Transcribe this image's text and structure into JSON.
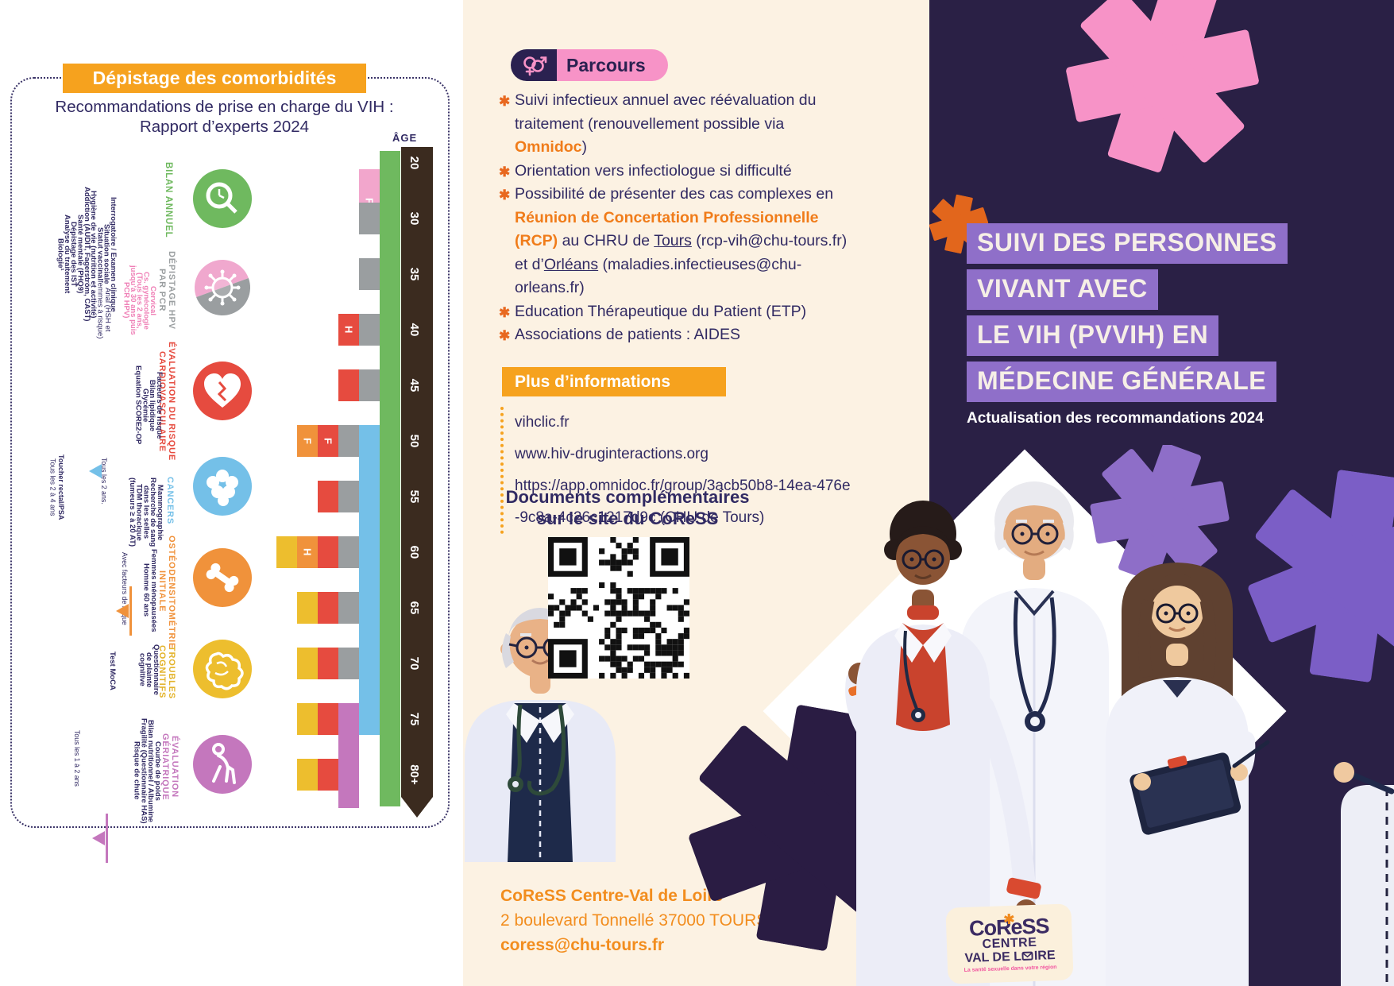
{
  "document_title": "Suivi des personnes vivant avec le VIH (PVVIH) en médecine générale",
  "colors": {
    "accent_orange": "#F6A21E",
    "deep_orange": "#E8681F",
    "link_orange": "#F07C1A",
    "navy": "#312A63",
    "cream": "#FCF2E3",
    "panel_dark": "#2A2045",
    "title_highlight": "#8F6FC9",
    "pink": "#F793C7",
    "logo_purple": "#3B2B63",
    "logo_pink": "#F2559F",
    "contact_orange": "#F28D1E",
    "blocks": {
      "green": "#6FB95F",
      "gray": "#9A9EA0",
      "pink": "#F2A6CC",
      "red": "#E64B3F",
      "orange": "#F0923B",
      "yellow": "#EDBE2E",
      "blue": "#74C0E8",
      "purple": "#C477BD",
      "brown": "#3B2B1F"
    }
  },
  "left_panel": {
    "box_title": "Dépistage des comorbidités",
    "subtitle": [
      "Recommandations de prise en charge du VIH :",
      "Rapport d’experts 2024"
    ],
    "age_axis_label": "ÂGE",
    "ages": [
      "20",
      "30",
      "35",
      "40",
      "45",
      "50",
      "55",
      "60",
      "65",
      "70",
      "75",
      "80+"
    ],
    "categories": [
      {
        "id": "bilan",
        "header": [
          "BILAN ANNUEL"
        ],
        "color": "#6FB95F",
        "icon": "magnifier-icon",
        "lines": [
          "Interrogatoire / Examen clinique",
          "Situation sociale",
          "Statut vaccinal",
          "Hygiène de vie (nutrition et activité)",
          "Addiction (AUDIT, Fagerström, CAST)",
          "Santé mentale (PHQ9)",
          "Dépistage des IST",
          "Analyse du traitement",
          "Biologie¹"
        ]
      },
      {
        "id": "hpv",
        "header": [
          "DÉPISTAGE HPV",
          "PAR PCR"
        ],
        "color": "#9A9EA0",
        "icon": "virus-icon",
        "pink_color": "#EF7FB6",
        "pink_lines": [
          "Cervical",
          "Cs. gynécologie",
          "(Tous les 2 ans,",
          "jusqu’à 30 ans puis",
          "PCR HPV)"
        ],
        "lines2": [
          "Anal (HSH et",
          "femmes à risque)"
        ]
      },
      {
        "id": "cardio",
        "header": [
          "ÉVALUATION DU RISQUE",
          "CARDIOVASCULAIRE"
        ],
        "color": "#E64B3F",
        "icon": "heart-icon",
        "lines": [
          "Facteurs de risque",
          "Bilan lipidique",
          "Glycémie",
          "Equation SCORE2-OP"
        ]
      },
      {
        "id": "cancers",
        "header": [
          "CANCERS"
        ],
        "color": "#74C0E8",
        "icon": "cells-icon",
        "lines": [
          "Mammographie",
          "Recherche de sang",
          "dans les selles",
          "TDM thoracique",
          "(fumeurs ≥ à 20 AT)"
        ],
        "annotations": [
          {
            "lines": [
              "Tous les 2 ans."
            ],
            "marker": "#74C0E8"
          },
          {
            "lines": [
              "Toucher rectal/PSA",
              "Tous les 2 à 4 ans"
            ],
            "bold_first": true
          }
        ]
      },
      {
        "id": "osteo",
        "header": [
          "OSTÉODENSITOMÉTRIE",
          "INITIALE"
        ],
        "color": "#F0923B",
        "icon": "bone-icon",
        "lines": [
          "Femmes ménopausées",
          "Homme 60 ans"
        ],
        "annotations": [
          {
            "lines": [
              "Avec facteurs de risque"
            ],
            "marker": "#F0923B"
          }
        ]
      },
      {
        "id": "cognitif",
        "header": [
          "TROUBLES",
          "COGNITIFS"
        ],
        "color": "#E3B32A",
        "icon": "brain-icon",
        "lines": [
          "Questionnaire",
          "de plainte",
          "cognitive"
        ],
        "lines2": [
          "Test MoCA"
        ]
      },
      {
        "id": "geriatrie",
        "header": [
          "ÉVALUATION",
          "GÉRIATRIQUE"
        ],
        "color": "#C477BD",
        "icon": "person-cane-icon",
        "lines": [
          "Courbe de poids",
          "Bilan nutritionnel / Albumine",
          "Fragilité (Questionnaire HAS)",
          "Risque de chute"
        ],
        "annotations": [
          {
            "lines": [
              "Tous les 1 à 2 ans"
            ],
            "marker": "#C477BD"
          }
        ]
      }
    ],
    "chart": {
      "type": "timeline-bar",
      "age_axis": [
        "20",
        "30",
        "35",
        "40",
        "45",
        "50",
        "55",
        "60",
        "65",
        "70",
        "75",
        "80+"
      ],
      "bars": [
        {
          "category": "BILAN ANNUEL",
          "c": "green",
          "from": "20",
          "to": "80+"
        },
        {
          "category": "CANCERS",
          "c": "blue",
          "from": "50",
          "to": "75"
        },
        {
          "category": "ÉVALUATION GÉRIATRIQUE",
          "c": "purple",
          "from": "75",
          "to": "80+"
        }
      ],
      "rows": [
        {
          "age": "20-30",
          "blocks": [
            {
              "c": "pink",
              "l": "F",
              "col": 1,
              "span2": true
            }
          ]
        },
        {
          "age": "30",
          "blocks": [
            {
              "c": "gray",
              "col": 1
            }
          ]
        },
        {
          "age": "35",
          "blocks": [
            {
              "c": "gray",
              "col": 1
            }
          ]
        },
        {
          "age": "40",
          "blocks": [
            {
              "c": "red",
              "l": "H",
              "col": 2
            },
            {
              "c": "gray",
              "col": 1
            }
          ]
        },
        {
          "age": "45",
          "blocks": [
            {
              "c": "red",
              "col": 2
            },
            {
              "c": "gray",
              "col": 1
            }
          ]
        },
        {
          "age": "50",
          "blocks": [
            {
              "c": "orange",
              "l": "F",
              "col": 4
            },
            {
              "c": "red",
              "l": "F",
              "col": 3
            },
            {
              "c": "gray",
              "col": 2
            }
          ]
        },
        {
          "age": "55",
          "blocks": [
            {
              "c": "red",
              "col": 3
            },
            {
              "c": "gray",
              "col": 2
            }
          ]
        },
        {
          "age": "60",
          "blocks": [
            {
              "c": "yellow",
              "col": 5
            },
            {
              "c": "orange",
              "l": "H",
              "col": 4
            },
            {
              "c": "red",
              "col": 3
            },
            {
              "c": "gray",
              "col": 2
            }
          ]
        },
        {
          "age": "65",
          "blocks": [
            {
              "c": "yellow",
              "col": 4
            },
            {
              "c": "red",
              "col": 3
            },
            {
              "c": "gray",
              "col": 2
            }
          ]
        },
        {
          "age": "70",
          "blocks": [
            {
              "c": "yellow",
              "col": 4
            },
            {
              "c": "red",
              "col": 3
            },
            {
              "c": "gray",
              "col": 2
            }
          ]
        },
        {
          "age": "75",
          "blocks": [
            {
              "c": "yellow",
              "col": 4
            },
            {
              "c": "red",
              "col": 3
            }
          ]
        },
        {
          "age": "80+",
          "blocks": [
            {
              "c": "yellow",
              "col": 4
            },
            {
              "c": "red",
              "col": 3
            }
          ]
        }
      ]
    }
  },
  "middle_panel": {
    "parcours": {
      "label": "Parcours",
      "icon": "gender-symbols-icon",
      "bullets": [
        [
          {
            "t": "Suivi infectieux annuel avec réévaluation du traitement (renouvellement possible via "
          },
          {
            "t": "Omnidoc",
            "s": "orange"
          },
          {
            "t": ")"
          }
        ],
        [
          {
            "t": "Orientation vers infectiologue si difficulté"
          }
        ],
        [
          {
            "t": "Possibilité de présenter des cas complexes en "
          },
          {
            "t": "Réunion de Concertation Professionnelle (RCP)",
            "s": "orange"
          },
          {
            "t": " au CHRU de "
          },
          {
            "t": "Tours",
            "s": "underline"
          },
          {
            "t": " (rcp-vih@chu-tours.fr) et d’"
          },
          {
            "t": "Orléans",
            "s": "underline"
          },
          {
            "t": " (maladies.infectieuses@chu-orleans.fr)"
          }
        ],
        [
          {
            "t": "Education Thérapeutique du Patient (ETP)"
          }
        ],
        [
          {
            "t": "Associations de patients : AIDES"
          }
        ]
      ]
    },
    "plus_informations": {
      "title": "Plus d’informations",
      "links": [
        "vihclic.fr",
        "www.hiv-druginteractions.org",
        "https://app.omnidoc.fr/group/3acb50b8-14ea-476e-9c8a-4c26c1217d9c (CHU de Tours)"
      ]
    },
    "documents": {
      "line1": "Documents complémentaires",
      "line2": "sur le site du CoReSS",
      "qr": "qr-code"
    },
    "contact": {
      "name": "CoReSS Centre-Val de Loire",
      "address": "2 boulevard Tonnellé 37000 TOURS",
      "email": "coress@chu-tours.fr"
    }
  },
  "right_panel": {
    "title_lines": [
      "SUIVI DES PERSONNES",
      "VIVANT AVEC",
      "LE VIH (PVVIH) EN",
      "MÉDECINE GÉNÉRALE"
    ],
    "subtitle": "Actualisation des recommandations 2024",
    "logo": {
      "name": "CoReSS",
      "line2": "CENTRE",
      "line3_prefix": "VAL DE L",
      "line3_suffix": "IRE",
      "tagline": "La santé sexuelle dans votre région"
    }
  }
}
